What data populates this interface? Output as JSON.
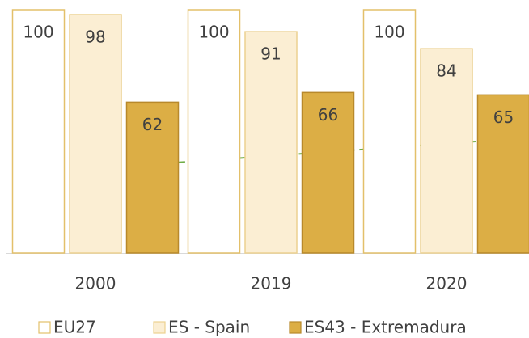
{
  "chart_data": {
    "type": "bar",
    "categories": [
      "2000",
      "2019",
      "2020"
    ],
    "series": [
      {
        "name": "EU27",
        "color": "#ffffff",
        "values": [
          100,
          100,
          100
        ]
      },
      {
        "name": "ES - Spain",
        "color": "#fbeed3",
        "values": [
          98,
          91,
          84
        ]
      },
      {
        "name": "ES43 - Extremadura",
        "color": "#dcae45",
        "values": [
          62,
          66,
          65
        ]
      }
    ],
    "ylim": [
      0,
      100
    ],
    "legend": "bottom"
  }
}
